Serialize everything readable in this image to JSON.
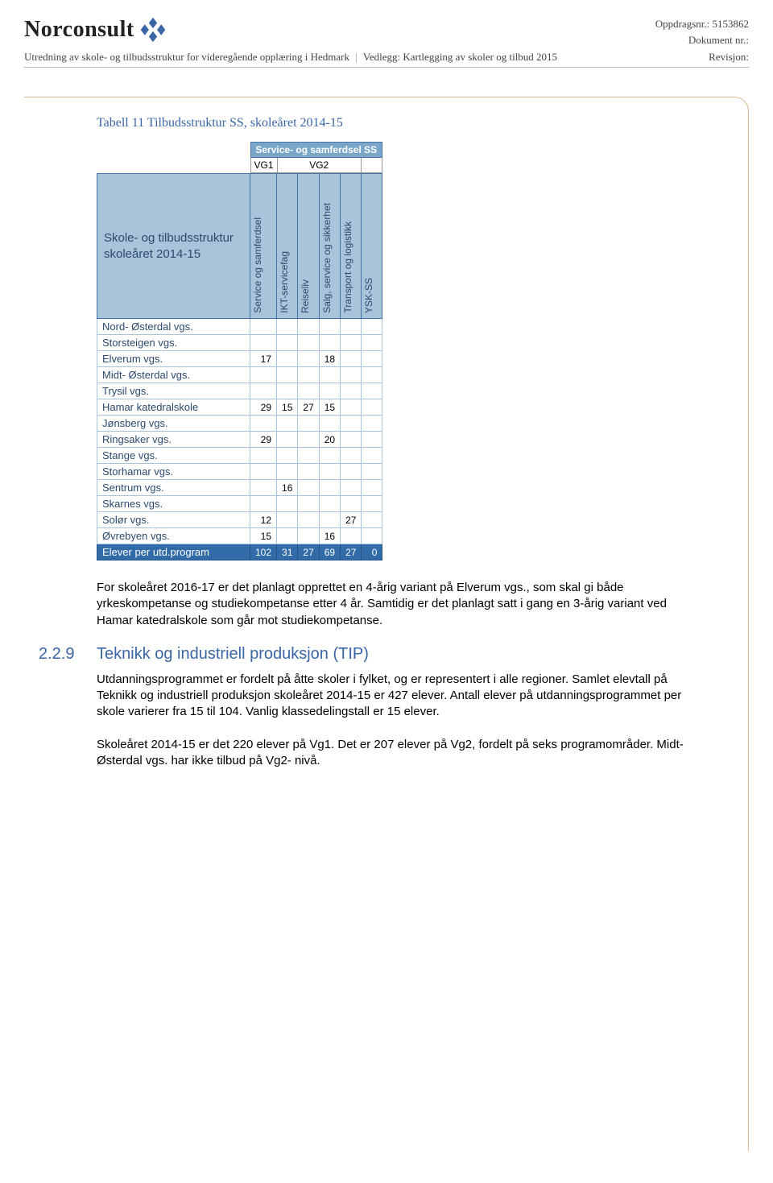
{
  "header": {
    "logo_text": "Norconsult",
    "oppdrag_label": "Oppdragsnr.:",
    "oppdrag_value": "5153862",
    "dokument_label": "Dokument nr.:",
    "dokument_value": "",
    "revisjon_label": "Revisjon:",
    "revisjon_value": "",
    "sub_left_1": "Utredning av skole- og tilbudsstruktur for videregående opplæring i Hedmark",
    "sub_sep": "|",
    "sub_left_2": "Vedlegg: Kartlegging av skoler og tilbud 2015"
  },
  "caption": "Tabell 11 Tilbudsstruktur SS, skoleåret 2014-15",
  "top_header": "Service- og samferdsel SS",
  "vg": {
    "vg1": "VG1",
    "vg2": "VG2"
  },
  "title_cell_l1": "Skole- og tilbudsstruktur",
  "title_cell_l2": "skoleåret 2014-15",
  "columns": [
    "Service og samferdsel",
    "IKT-servicefag",
    "Reiseliv",
    "Salg, service og sikkerhet",
    "Transport og logistikk",
    "YSK-SS"
  ],
  "rows": [
    {
      "school": "Nord- Østerdal vgs.",
      "vals": [
        "",
        "",
        "",
        "",
        "",
        ""
      ]
    },
    {
      "school": "Storsteigen vgs.",
      "vals": [
        "",
        "",
        "",
        "",
        "",
        ""
      ]
    },
    {
      "school": "Elverum vgs.",
      "vals": [
        "17",
        "",
        "",
        "18",
        "",
        ""
      ]
    },
    {
      "school": "Midt- Østerdal vgs.",
      "vals": [
        "",
        "",
        "",
        "",
        "",
        ""
      ]
    },
    {
      "school": "Trysil vgs.",
      "vals": [
        "",
        "",
        "",
        "",
        "",
        ""
      ]
    },
    {
      "school": "Hamar katedralskole",
      "vals": [
        "29",
        "15",
        "27",
        "15",
        "",
        ""
      ]
    },
    {
      "school": "Jønsberg vgs.",
      "vals": [
        "",
        "",
        "",
        "",
        "",
        ""
      ]
    },
    {
      "school": "Ringsaker vgs.",
      "vals": [
        "29",
        "",
        "",
        "20",
        "",
        ""
      ]
    },
    {
      "school": "Stange vgs.",
      "vals": [
        "",
        "",
        "",
        "",
        "",
        ""
      ]
    },
    {
      "school": "Storhamar vgs.",
      "vals": [
        "",
        "",
        "",
        "",
        "",
        ""
      ]
    },
    {
      "school": "Sentrum vgs.",
      "vals": [
        "",
        "16",
        "",
        "",
        "",
        ""
      ]
    },
    {
      "school": "Skarnes vgs.",
      "vals": [
        "",
        "",
        "",
        "",
        "",
        ""
      ]
    },
    {
      "school": "Solør vgs.",
      "vals": [
        "12",
        "",
        "",
        "",
        "27",
        ""
      ]
    },
    {
      "school": "Øvrebyen vgs.",
      "vals": [
        "15",
        "",
        "",
        "16",
        "",
        ""
      ]
    }
  ],
  "total": {
    "label": "Elever per utd.program",
    "vals": [
      "102",
      "31",
      "27",
      "69",
      "27",
      "0"
    ]
  },
  "para1": "For skoleåret 2016-17 er det planlagt opprettet en 4-årig variant på Elverum vgs., som skal gi både yrkeskompetanse og studiekompetanse etter 4 år. Samtidig er det planlagt satt i gang en 3-årig variant ved Hamar katedralskole som går mot studiekompetanse.",
  "section": {
    "num": "2.2.9",
    "title": "Teknikk og industriell produksjon (TIP)"
  },
  "para2": "Utdanningsprogrammet er fordelt på åtte skoler i fylket, og er representert i alle regioner. Samlet elevtall på Teknikk og industriell produksjon skoleåret 2014-15 er 427 elever. Antall elever på utdanningsprogrammet per skole varierer fra 15 til 104. Vanlig klassedelingstall er 15 elever.",
  "para3": "Skoleåret 2014-15 er det 220 elever på Vg1. Det er 207 elever på Vg2, fordelt på seks programområder. Midt- Østerdal vgs. har ikke tilbud på Vg2- nivå.",
  "colors": {
    "header_bg": "#a8c3da",
    "total_bg": "#316ba8",
    "accent": "#3a66a6",
    "border": "#d9b38c"
  }
}
